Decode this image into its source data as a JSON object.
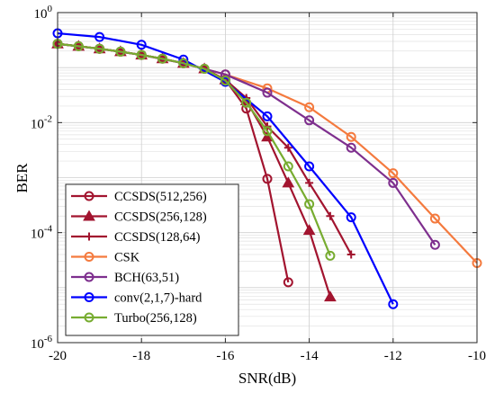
{
  "chart_data": {
    "type": "line",
    "xlabel": "SNR(dB)",
    "ylabel": "BER",
    "xlim": [
      -20,
      -10
    ],
    "ylim": [
      1e-06,
      1
    ],
    "yscale": "log",
    "x_ticks": [
      -20,
      -18,
      -16,
      -14,
      -12,
      -10
    ],
    "y_ticks": [
      1e-06,
      0.0001,
      0.01,
      1
    ],
    "x_tick_labels": [
      "-20",
      "-18",
      "-16",
      "-14",
      "-12",
      "-10"
    ],
    "y_tick_labels": [
      {
        "base": "10",
        "exp": "-6"
      },
      {
        "base": "10",
        "exp": "-4"
      },
      {
        "base": "10",
        "exp": "-2"
      },
      {
        "base": "10",
        "exp": "0"
      }
    ],
    "grid": true,
    "legend_position": "bottom-left",
    "series": [
      {
        "name": "CCSDS(512,256)",
        "color": "#a2142f",
        "marker": "circle",
        "x": [
          -20,
          -19.5,
          -19,
          -18.5,
          -18,
          -17.5,
          -17,
          -16.5,
          -16,
          -15.5,
          -15,
          -14.5
        ],
        "y": [
          0.27,
          0.245,
          0.22,
          0.195,
          0.17,
          0.145,
          0.12,
          0.095,
          0.06,
          0.018,
          0.00095,
          1.25e-05
        ]
      },
      {
        "name": "CCSDS(256,128)",
        "color": "#a2142f",
        "marker": "triangle",
        "x": [
          -20,
          -19.5,
          -19,
          -18.5,
          -18,
          -17.5,
          -17,
          -16.5,
          -16,
          -15.5,
          -15,
          -14.5,
          -14,
          -13.5
        ],
        "y": [
          0.27,
          0.245,
          0.22,
          0.195,
          0.17,
          0.145,
          0.12,
          0.095,
          0.06,
          0.025,
          0.0055,
          0.0008,
          0.00011,
          6.8e-06
        ]
      },
      {
        "name": "CCSDS(128,64)",
        "color": "#a2142f",
        "marker": "plus",
        "x": [
          -20,
          -19.5,
          -19,
          -18.5,
          -18,
          -17.5,
          -17,
          -16.5,
          -16,
          -15.5,
          -15,
          -14.5,
          -14,
          -13.5,
          -13
        ],
        "y": [
          0.27,
          0.245,
          0.22,
          0.195,
          0.17,
          0.145,
          0.12,
          0.095,
          0.06,
          0.028,
          0.0085,
          0.0035,
          0.0008,
          0.0002,
          4e-05
        ]
      },
      {
        "name": "CSK",
        "color": "#f47a3e",
        "marker": "circle",
        "x": [
          -20,
          -19,
          -18,
          -17,
          -16,
          -15,
          -14,
          -13,
          -12,
          -11,
          -10
        ],
        "y": [
          0.27,
          0.22,
          0.17,
          0.12,
          0.075,
          0.042,
          0.019,
          0.0055,
          0.0012,
          0.00018,
          2.8e-05
        ]
      },
      {
        "name": "BCH(63,51)",
        "color": "#7e2f8e",
        "marker": "circle",
        "x": [
          -20,
          -19,
          -18,
          -17,
          -16,
          -15,
          -14,
          -13,
          -12,
          -11
        ],
        "y": [
          0.27,
          0.22,
          0.17,
          0.12,
          0.075,
          0.035,
          0.011,
          0.0035,
          0.0008,
          6e-05
        ]
      },
      {
        "name": "conv(2,1,7)-hard",
        "color": "#0000ff",
        "marker": "circle",
        "x": [
          -20,
          -19,
          -18,
          -17,
          -16,
          -15,
          -14,
          -13,
          -12
        ],
        "y": [
          0.42,
          0.36,
          0.26,
          0.14,
          0.055,
          0.013,
          0.0016,
          0.00019,
          5e-06
        ]
      },
      {
        "name": "Turbo(256,128)",
        "color": "#77ac30",
        "marker": "circle",
        "x": [
          -20,
          -19.5,
          -19,
          -18.5,
          -18,
          -17.5,
          -17,
          -16.5,
          -16,
          -15.5,
          -15,
          -14.5,
          -14,
          -13.5
        ],
        "y": [
          0.27,
          0.245,
          0.22,
          0.195,
          0.17,
          0.145,
          0.12,
          0.095,
          0.058,
          0.023,
          0.007,
          0.0016,
          0.00033,
          3.8e-05
        ]
      }
    ]
  }
}
